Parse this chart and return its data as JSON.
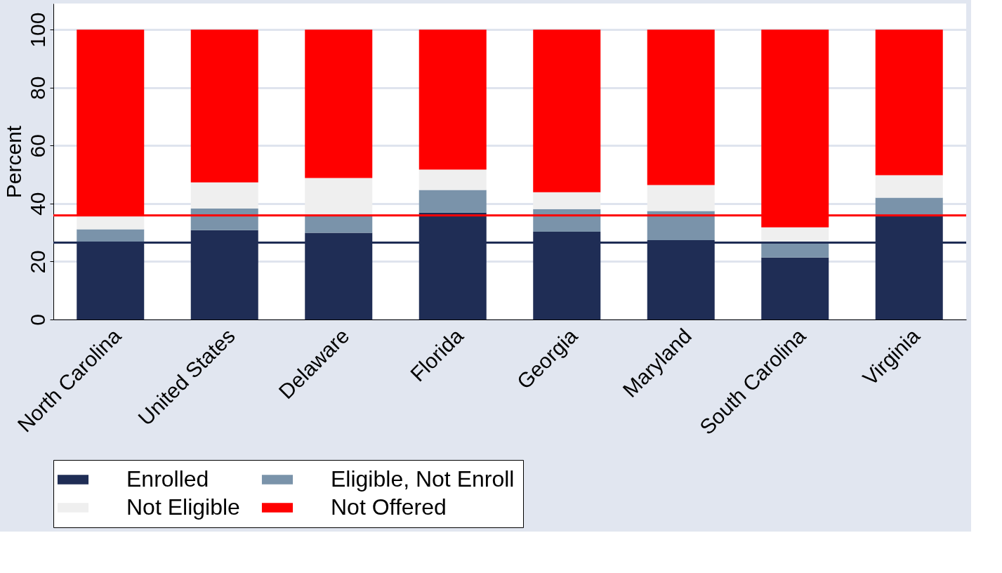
{
  "chart_data": {
    "type": "bar",
    "stacked": true,
    "ylabel": "Percent",
    "categories": [
      "North Carolina",
      "United States",
      "Delaware",
      "Florida",
      "Georgia",
      "Maryland",
      "South Carolina",
      "Virginia"
    ],
    "series": [
      {
        "name": "Enrolled",
        "color": "#1f2d55",
        "values": [
          26.5,
          30.8,
          29.9,
          36.9,
          30.3,
          27.4,
          21.4,
          35.7
        ]
      },
      {
        "name": "Eligible, Not Enroll",
        "color": "#7a93aa",
        "values": [
          4.6,
          7.5,
          6.0,
          7.8,
          7.8,
          10.0,
          5.3,
          6.3
        ]
      },
      {
        "name": "Not Eligible",
        "color": "#efefef",
        "values": [
          4.8,
          9.0,
          12.9,
          7.0,
          5.8,
          9.0,
          5.1,
          7.8
        ]
      },
      {
        "name": "Not Offered",
        "color": "#ff0000",
        "values": [
          64.1,
          52.7,
          51.2,
          48.3,
          56.1,
          53.6,
          68.2,
          50.2
        ]
      }
    ],
    "ylim": [
      0,
      109
    ],
    "yticks": [
      0,
      20,
      40,
      60,
      80,
      100
    ],
    "grid": "y",
    "legend": "bottom",
    "ref_lines": [
      {
        "axis": "y",
        "value": 26.5,
        "color": "#1f2d55"
      },
      {
        "axis": "y",
        "value": 35.9,
        "color": "#ff0000"
      }
    ]
  }
}
